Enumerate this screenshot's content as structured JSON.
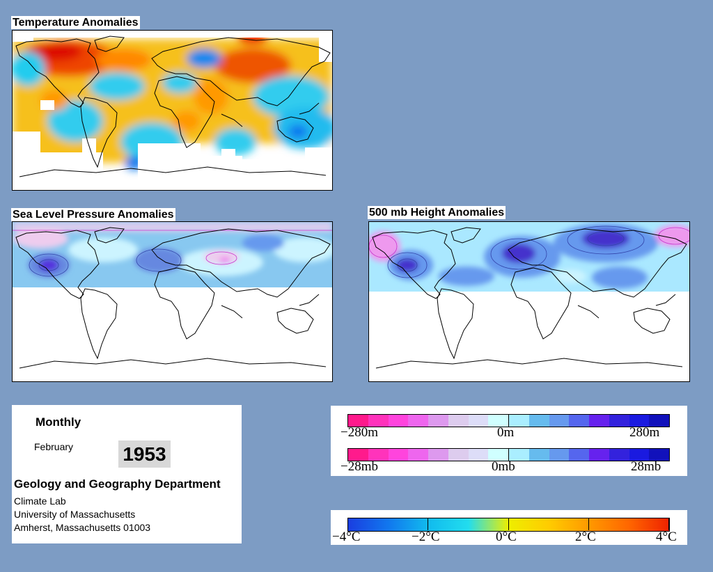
{
  "maps": {
    "temperature": {
      "title": "Temperature Anomalies"
    },
    "slp": {
      "title": "Sea Level Pressure Anomalies"
    },
    "height500": {
      "title": "500 mb Height Anomalies"
    }
  },
  "info": {
    "period": "Monthly",
    "month": "February",
    "year": "1953",
    "department": "Geology and Geography Department",
    "lab": "Climate Lab",
    "university": "University of Massachusetts",
    "address": "Amherst, Massachusetts 01003"
  },
  "legend_height": {
    "min_label": "−280m",
    "mid_label": "0m",
    "max_label": "280m",
    "colors": [
      "#ff1a8c",
      "#ff33bb",
      "#ff44dd",
      "#ee66ee",
      "#dd99ee",
      "#ddccee",
      "#ddddf8",
      "#d0ffff",
      "#aaeeff",
      "#66bbee",
      "#6699ee",
      "#5566ee",
      "#6622ee",
      "#3322dd",
      "#1a1ae0",
      "#1111bb"
    ]
  },
  "legend_pressure": {
    "min_label": "−28mb",
    "mid_label": "0mb",
    "max_label": "28mb",
    "colors": [
      "#ff1a8c",
      "#ff33bb",
      "#ff44dd",
      "#ee66ee",
      "#dd99ee",
      "#ddccee",
      "#ddddf8",
      "#d0ffff",
      "#aaeeff",
      "#66bbee",
      "#6699ee",
      "#5566ee",
      "#6622ee",
      "#3322dd",
      "#1a1ae0",
      "#1111bb"
    ]
  },
  "legend_temperature": {
    "ticks": [
      "−4°C",
      "−2°C",
      "0°C",
      "2°C",
      "4°C"
    ],
    "gradient": [
      "#1a3ee0",
      "#1177ee",
      "#11bbee",
      "#22ddee",
      "#eeee00",
      "#ffcc00",
      "#ff9900",
      "#ff6600",
      "#ee2200"
    ]
  }
}
